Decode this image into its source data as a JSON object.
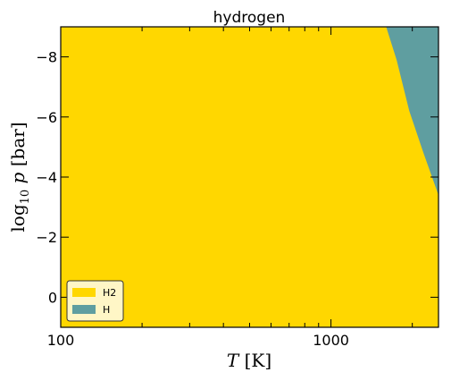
{
  "chart_data": {
    "type": "heatmap",
    "title": "hydrogen",
    "xlabel": "T [K]",
    "ylabel": "log10 p [bar]",
    "xscale": "log",
    "xlim": [
      100,
      2500
    ],
    "ylim": [
      1,
      -9
    ],
    "y_axis_inverted": true,
    "x_major_ticks": [
      100,
      1000
    ],
    "x_tick_labels": [
      "100",
      "1000"
    ],
    "y_ticks": [
      0,
      -2,
      -4,
      -6,
      -8
    ],
    "y_tick_labels": [
      "0",
      "−2",
      "−4",
      "−6",
      "−8"
    ],
    "regions": [
      {
        "name": "H2",
        "color": "#FFD700"
      },
      {
        "name": "H",
        "color": "#5F9EA0"
      }
    ],
    "boundary": {
      "x": [
        1600,
        1750,
        1950,
        2200,
        2500
      ],
      "y": [
        -9,
        -7.9,
        -6.2,
        -4.8,
        -3.4
      ]
    },
    "legend": {
      "placement": "lower-left",
      "entries": [
        "H2",
        "H"
      ]
    }
  }
}
